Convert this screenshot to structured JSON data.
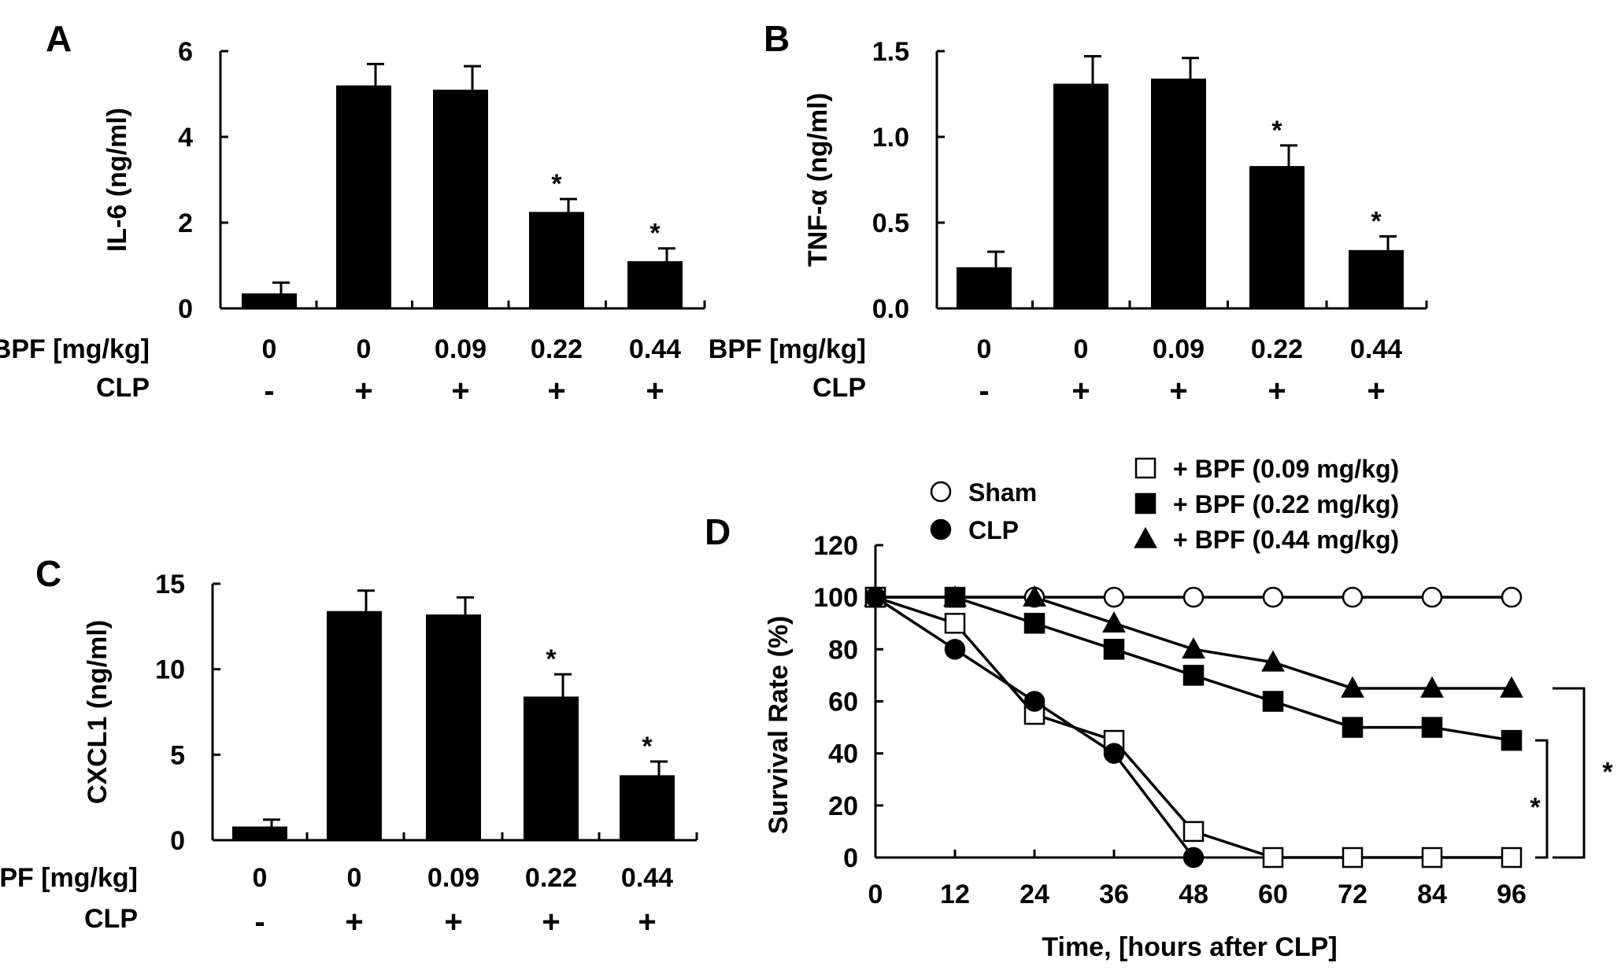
{
  "chart_data": [
    {
      "panel": "A",
      "type": "bar",
      "ylabel": "IL-6 (ng/ml)",
      "ylim": [
        0,
        6
      ],
      "yticks": [
        0,
        2,
        4,
        6
      ],
      "categories": [
        "0",
        "0",
        "0.09",
        "0.22",
        "0.44"
      ],
      "values": [
        0.35,
        5.2,
        5.1,
        2.25,
        1.1
      ],
      "errors": [
        0.25,
        0.5,
        0.55,
        0.3,
        0.3
      ],
      "significant": [
        false,
        false,
        false,
        true,
        true
      ],
      "bpf_row_label": "BPF [mg/kg]",
      "clp_row_label": "CLP",
      "clp": [
        "-",
        "+",
        "+",
        "+",
        "+"
      ]
    },
    {
      "panel": "B",
      "type": "bar",
      "ylabel": "TNF-α (ng/ml)",
      "ylim": [
        0,
        1.5
      ],
      "yticks": [
        "0.0",
        "0.5",
        "1.0",
        "1.5"
      ],
      "categories": [
        "0",
        "0",
        "0.09",
        "0.22",
        "0.44"
      ],
      "values": [
        0.24,
        1.31,
        1.34,
        0.83,
        0.34
      ],
      "errors": [
        0.09,
        0.16,
        0.12,
        0.12,
        0.08
      ],
      "significant": [
        false,
        false,
        false,
        true,
        true
      ],
      "bpf_row_label": "BPF [mg/kg]",
      "clp_row_label": "CLP",
      "clp": [
        "-",
        "+",
        "+",
        "+",
        "+"
      ]
    },
    {
      "panel": "C",
      "type": "bar",
      "ylabel": "CXCL1 (ng/ml)",
      "ylim": [
        0,
        15
      ],
      "yticks": [
        0,
        5,
        10,
        15
      ],
      "categories": [
        "0",
        "0",
        "0.09",
        "0.22",
        "0.44"
      ],
      "values": [
        0.8,
        13.4,
        13.2,
        8.4,
        3.8
      ],
      "errors": [
        0.4,
        1.2,
        1.0,
        1.3,
        0.8
      ],
      "significant": [
        false,
        false,
        false,
        true,
        true
      ],
      "bpf_row_label": "BPF [mg/kg]",
      "clp_row_label": "CLP",
      "clp": [
        "-",
        "+",
        "+",
        "+",
        "+"
      ]
    },
    {
      "panel": "D",
      "type": "line",
      "xlabel": "Time, [hours after CLP]",
      "ylabel": "Survival Rate (%)",
      "xlim": [
        0,
        96
      ],
      "ylim": [
        0,
        120
      ],
      "xticks": [
        0,
        12,
        24,
        36,
        48,
        60,
        72,
        84,
        96
      ],
      "yticks": [
        0,
        20,
        40,
        60,
        80,
        100,
        120
      ],
      "series": [
        {
          "name": "Sham",
          "marker": "circle-open",
          "x": [
            0,
            12,
            24,
            36,
            48,
            60,
            72,
            84,
            96
          ],
          "y": [
            100,
            100,
            100,
            100,
            100,
            100,
            100,
            100,
            100
          ]
        },
        {
          "name": "CLP",
          "marker": "circle-filled",
          "x": [
            0,
            12,
            24,
            36,
            48
          ],
          "y": [
            100,
            80,
            60,
            40,
            0
          ]
        },
        {
          "name": "+ BPF (0.09 mg/kg)",
          "marker": "square-open",
          "x": [
            0,
            12,
            24,
            36,
            48,
            60,
            72,
            84,
            96
          ],
          "y": [
            100,
            90,
            55,
            45,
            10,
            0,
            0,
            0,
            0
          ]
        },
        {
          "name": "+ BPF (0.22 mg/kg)",
          "marker": "square-filled",
          "x": [
            0,
            12,
            24,
            36,
            48,
            60,
            72,
            84,
            96
          ],
          "y": [
            100,
            100,
            90,
            80,
            70,
            60,
            50,
            50,
            45
          ]
        },
        {
          "name": "+ BPF (0.44 mg/kg)",
          "marker": "triangle-filled",
          "x": [
            0,
            12,
            24,
            36,
            48,
            60,
            72,
            84,
            96
          ],
          "y": [
            100,
            100,
            100,
            90,
            80,
            75,
            65,
            65,
            65
          ]
        }
      ],
      "significance_brackets": [
        {
          "label": "*",
          "from_y": 45,
          "to_y": 0
        },
        {
          "label": "*",
          "from_y": 65,
          "to_y": 0
        }
      ]
    }
  ]
}
